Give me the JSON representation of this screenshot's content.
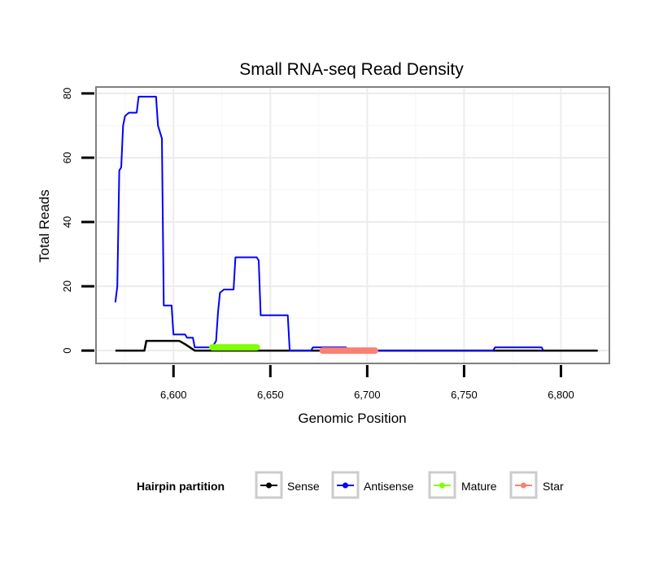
{
  "chart_data": {
    "type": "line",
    "title": "Small RNA-seq Read Density",
    "xlabel": "Genomic Position",
    "ylabel": "Total Reads",
    "xlim": [
      6560,
      6825
    ],
    "ylim": [
      -4,
      82
    ],
    "x_ticks": [
      6600,
      6650,
      6700,
      6750,
      6800
    ],
    "x_tick_labels": [
      "6,600",
      "6,650",
      "6,700",
      "6,750",
      "6,800"
    ],
    "y_ticks": [
      0,
      20,
      40,
      60,
      80
    ],
    "y_tick_labels": [
      "0",
      "20",
      "40",
      "60",
      "80"
    ],
    "grid": true,
    "legend": {
      "title": "Hairpin partition",
      "position": "bottom",
      "entries": [
        {
          "name": "Sense",
          "color": "#000000"
        },
        {
          "name": "Antisense",
          "color": "#0000ff"
        },
        {
          "name": "Mature",
          "color": "#7fff00"
        },
        {
          "name": "Star",
          "color": "#fa8072"
        }
      ]
    },
    "series": [
      {
        "name": "Sense",
        "color": "#000000",
        "width": 2.5,
        "x": [
          6570,
          6585,
          6586,
          6603,
          6606,
          6611,
          6620
        ],
        "y": [
          0,
          0,
          3,
          3,
          2,
          0,
          0
        ],
        "x_end": 6819
      },
      {
        "name": "Antisense",
        "color": "#0000ff",
        "width": 2,
        "x": [
          6570,
          6571,
          6572,
          6573,
          6574,
          6575,
          6577,
          6581,
          6582,
          6591,
          6592,
          6594,
          6595,
          6599,
          6600,
          6606,
          6607,
          6610,
          6611,
          6620,
          6621,
          6622,
          6623,
          6624,
          6626,
          6631,
          6632,
          6643,
          6644,
          6645,
          6654,
          6655,
          6659,
          6660,
          6671,
          6672,
          6689,
          6690,
          6765,
          6766,
          6790,
          6791
        ],
        "y": [
          15,
          20,
          56,
          57,
          70,
          73,
          74,
          74,
          79,
          79,
          70,
          66,
          14,
          14,
          5,
          5,
          4,
          4,
          1,
          1,
          2,
          3,
          12,
          18,
          19,
          19,
          29,
          29,
          28,
          11,
          11,
          11,
          11,
          0,
          0,
          1,
          1,
          0,
          0,
          1,
          1,
          0
        ]
      },
      {
        "name": "Mature",
        "color": "#7fff00",
        "width": 8,
        "x": [
          6620,
          6643
        ],
        "y": [
          1,
          1
        ]
      },
      {
        "name": "Star",
        "color": "#fa8072",
        "width": 8,
        "x": [
          6677,
          6704
        ],
        "y": [
          0,
          0
        ]
      }
    ]
  }
}
